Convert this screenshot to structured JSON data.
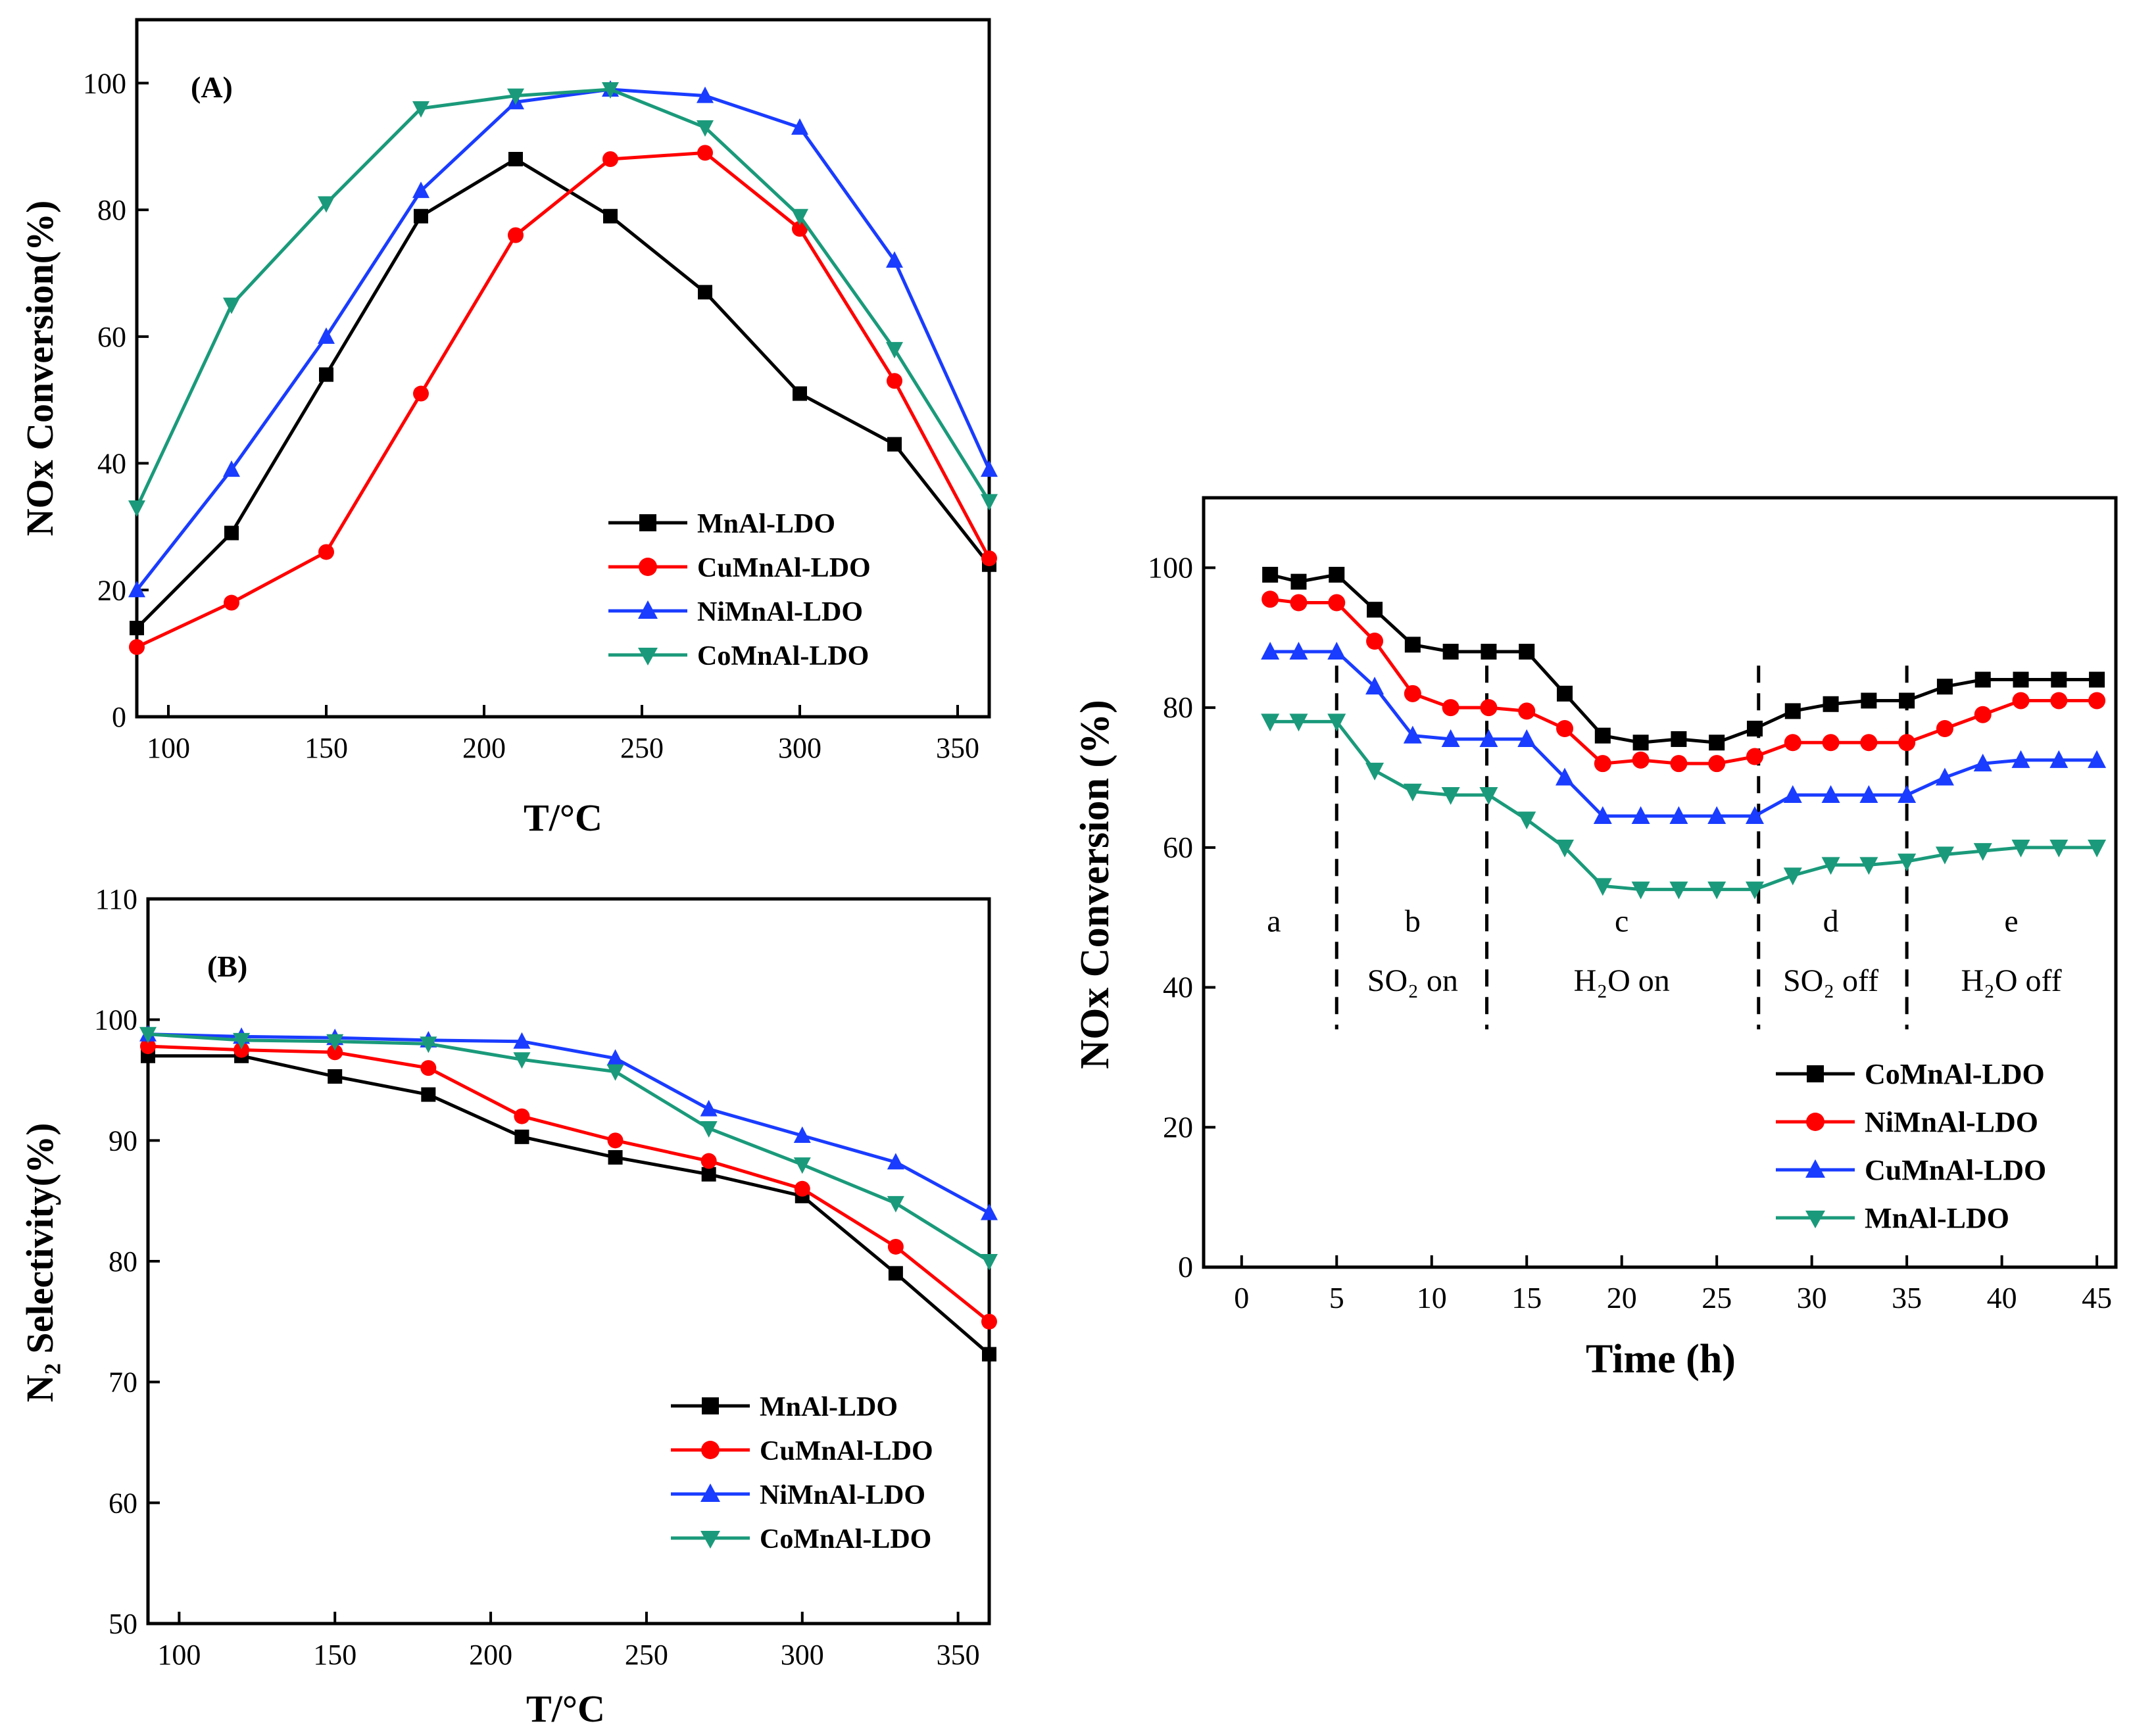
{
  "chart_data": [
    {
      "id": "A",
      "type": "line",
      "panel_label": "(A)",
      "xlabel": "T/°C",
      "ylabel": "NOx Conversion(%)",
      "xlim": [
        90,
        360
      ],
      "ylim": [
        0,
        110
      ],
      "xticks": [
        100,
        150,
        200,
        250,
        300,
        350
      ],
      "yticks": [
        0,
        20,
        40,
        60,
        80,
        100
      ],
      "legend_position": "lower-right",
      "x": [
        90,
        120,
        150,
        180,
        210,
        240,
        270,
        300,
        330,
        360
      ],
      "series": [
        {
          "name": "MnAl-LDO",
          "color": "#000000",
          "marker": "square",
          "values": [
            14,
            29,
            54,
            79,
            88,
            79,
            67,
            51,
            43,
            24
          ]
        },
        {
          "name": "CuMnAl-LDO",
          "color": "#ff0000",
          "marker": "circle",
          "values": [
            11,
            18,
            26,
            51,
            76,
            88,
            89,
            77,
            53,
            25
          ]
        },
        {
          "name": "NiMnAl-LDO",
          "color": "#1a3cff",
          "marker": "triangle-up",
          "values": [
            20,
            39,
            60,
            83,
            97,
            99,
            98,
            93,
            72,
            39
          ]
        },
        {
          "name": "CoMnAl-LDO",
          "color": "#1a9a7a",
          "marker": "triangle-down",
          "values": [
            33,
            65,
            81,
            96,
            98,
            99,
            93,
            79,
            58,
            34
          ]
        }
      ]
    },
    {
      "id": "B",
      "type": "line",
      "panel_label": "(B)",
      "xlabel": "T/°C",
      "ylabel": "N₂ Selectivity(%)",
      "xlim": [
        90,
        360
      ],
      "ylim": [
        50,
        110
      ],
      "xticks": [
        100,
        150,
        200,
        250,
        300,
        350
      ],
      "yticks": [
        50,
        60,
        70,
        80,
        90,
        100,
        110
      ],
      "legend_position": "lower-right",
      "x": [
        90,
        120,
        150,
        180,
        210,
        240,
        270,
        300,
        330,
        360
      ],
      "series": [
        {
          "name": "MnAl-LDO",
          "color": "#000000",
          "marker": "square",
          "values": [
            97,
            97,
            95.3,
            93.8,
            90.3,
            88.6,
            87.2,
            85.4,
            79,
            72.3
          ]
        },
        {
          "name": "CuMnAl-LDO",
          "color": "#ff0000",
          "marker": "circle",
          "values": [
            97.8,
            97.5,
            97.3,
            96,
            92,
            90,
            88.3,
            86,
            81.2,
            75
          ]
        },
        {
          "name": "NiMnAl-LDO",
          "color": "#1a3cff",
          "marker": "triangle-up",
          "values": [
            98.8,
            98.6,
            98.5,
            98.3,
            98.2,
            96.8,
            92.6,
            90.4,
            88.2,
            84
          ]
        },
        {
          "name": "CoMnAl-LDO",
          "color": "#1a9a7a",
          "marker": "triangle-down",
          "values": [
            98.8,
            98.3,
            98.2,
            98,
            96.7,
            95.7,
            91,
            88,
            84.8,
            80
          ]
        }
      ]
    },
    {
      "id": "C",
      "type": "line",
      "panel_label": "",
      "xlabel": "Time (h)",
      "ylabel": "NOx Conversion (%)",
      "xlim": [
        -2,
        46
      ],
      "ylim": [
        0,
        110
      ],
      "xticks": [
        0,
        5,
        10,
        15,
        20,
        25,
        30,
        35,
        40,
        45
      ],
      "yticks": [
        0,
        20,
        40,
        60,
        80,
        100
      ],
      "legend_position": "lower-right",
      "x": [
        1.5,
        3,
        5,
        7,
        9,
        11,
        13,
        15,
        17,
        19,
        21,
        23,
        25,
        27,
        29,
        31,
        33,
        35,
        37,
        39,
        41,
        43,
        45
      ],
      "series": [
        {
          "name": "CoMnAl-LDO",
          "color": "#000000",
          "marker": "square",
          "values": [
            99,
            98,
            99,
            94,
            89,
            88,
            88,
            88,
            82,
            76,
            75,
            75.5,
            75,
            77,
            79.5,
            80.5,
            81,
            81,
            83,
            84,
            84,
            84,
            84
          ]
        },
        {
          "name": "NiMnAl-LDO",
          "color": "#ff0000",
          "marker": "circle",
          "values": [
            95.5,
            95,
            95,
            89.5,
            82,
            80,
            80,
            79.5,
            77,
            72,
            72.5,
            72,
            72,
            73,
            75,
            75,
            75,
            75,
            77,
            79,
            81,
            81,
            81
          ]
        },
        {
          "name": "CuMnAl-LDO",
          "color": "#1a3cff",
          "marker": "triangle-up",
          "values": [
            88,
            88,
            88,
            83,
            76,
            75.5,
            75.5,
            75.5,
            70,
            64.5,
            64.5,
            64.5,
            64.5,
            64.5,
            67.5,
            67.5,
            67.5,
            67.5,
            70,
            72,
            72.5,
            72.5,
            72.5
          ]
        },
        {
          "name": "MnAl-LDO",
          "color": "#1a9a7a",
          "marker": "triangle-down",
          "values": [
            78,
            78,
            78,
            71,
            68,
            67.5,
            67.5,
            64,
            60,
            54.5,
            54,
            54,
            54,
            54,
            56,
            57.5,
            57.5,
            58,
            59,
            59.5,
            60,
            60,
            60
          ]
        }
      ],
      "dividers": [
        5,
        12.9,
        27.2,
        35
      ],
      "phases": [
        {
          "letter": "a",
          "x": 1.7,
          "condition": ""
        },
        {
          "letter": "b",
          "x": 9,
          "condition": "SO₂ on"
        },
        {
          "letter": "c",
          "x": 20,
          "condition": "H₂O on"
        },
        {
          "letter": "d",
          "x": 31,
          "condition": "SO₂ off"
        },
        {
          "letter": "e",
          "x": 40.5,
          "condition": "H₂O off"
        }
      ]
    }
  ]
}
